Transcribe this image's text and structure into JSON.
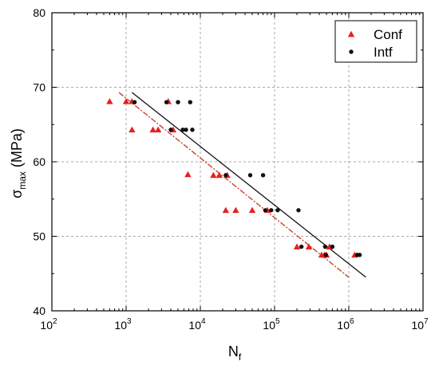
{
  "chart_data": {
    "type": "scatter",
    "xscale": "log",
    "xlim": [
      100,
      10000000
    ],
    "ylim": [
      40,
      80
    ],
    "xlabel": {
      "base": "N",
      "sub": "f"
    },
    "ylabel": {
      "base": "σ",
      "sub": "max",
      "rest": " (MPa)"
    },
    "x_ticks": [
      {
        "value": 100,
        "base": "10",
        "exp": "2"
      },
      {
        "value": 1000,
        "base": "10",
        "exp": "3"
      },
      {
        "value": 10000,
        "base": "10",
        "exp": "4"
      },
      {
        "value": 100000,
        "base": "10",
        "exp": "5"
      },
      {
        "value": 1000000,
        "base": "10",
        "exp": "6"
      },
      {
        "value": 10000000,
        "base": "10",
        "exp": "7"
      }
    ],
    "y_ticks": [
      {
        "value": 40,
        "label": "40"
      },
      {
        "value": 50,
        "label": "50"
      },
      {
        "value": 60,
        "label": "60"
      },
      {
        "value": 70,
        "label": "70"
      },
      {
        "value": 80,
        "label": "80"
      }
    ],
    "grid": true,
    "legend_position": "top-right",
    "series": [
      {
        "name": "Conf",
        "marker": "triangle",
        "color": "#e8201f",
        "fit_color": "#c8361c",
        "fit_style": "dash-dot",
        "points": [
          [
            600,
            68.1
          ],
          [
            1000,
            68.1
          ],
          [
            1200,
            68.1
          ],
          [
            1200,
            64.3
          ],
          [
            2300,
            64.3
          ],
          [
            2700,
            64.3
          ],
          [
            3700,
            68.1
          ],
          [
            4300,
            64.3
          ],
          [
            6800,
            58.3
          ],
          [
            15000,
            58.2
          ],
          [
            18000,
            58.2
          ],
          [
            23000,
            58.2
          ],
          [
            22000,
            53.5
          ],
          [
            30000,
            53.5
          ],
          [
            50000,
            53.5
          ],
          [
            80000,
            53.5
          ],
          [
            200000,
            48.6
          ],
          [
            290000,
            48.6
          ],
          [
            430000,
            47.5
          ],
          [
            470000,
            47.5
          ],
          [
            500000,
            47.5
          ],
          [
            550000,
            48.6
          ],
          [
            1200000,
            47.5
          ]
        ],
        "fit": [
          [
            800,
            69.3
          ],
          [
            1000000,
            44.5
          ]
        ]
      },
      {
        "name": "Intf",
        "marker": "circle",
        "color": "#111111",
        "fit_color": "#111111",
        "fit_style": "solid",
        "points": [
          [
            1300,
            68.0
          ],
          [
            3500,
            68.0
          ],
          [
            5000,
            68.0
          ],
          [
            7300,
            68.0
          ],
          [
            4000,
            64.3
          ],
          [
            5800,
            64.3
          ],
          [
            6400,
            64.3
          ],
          [
            7800,
            64.3
          ],
          [
            22000,
            58.2
          ],
          [
            47000,
            58.2
          ],
          [
            70000,
            58.2
          ],
          [
            75000,
            53.5
          ],
          [
            90000,
            53.5
          ],
          [
            110000,
            53.5
          ],
          [
            210000,
            53.5
          ],
          [
            230000,
            48.6
          ],
          [
            480000,
            48.6
          ],
          [
            600000,
            48.6
          ],
          [
            490000,
            47.5
          ],
          [
            1300000,
            47.5
          ],
          [
            1400000,
            47.5
          ]
        ],
        "fit": [
          [
            1200,
            69.3
          ],
          [
            1700000,
            44.5
          ]
        ]
      }
    ]
  }
}
